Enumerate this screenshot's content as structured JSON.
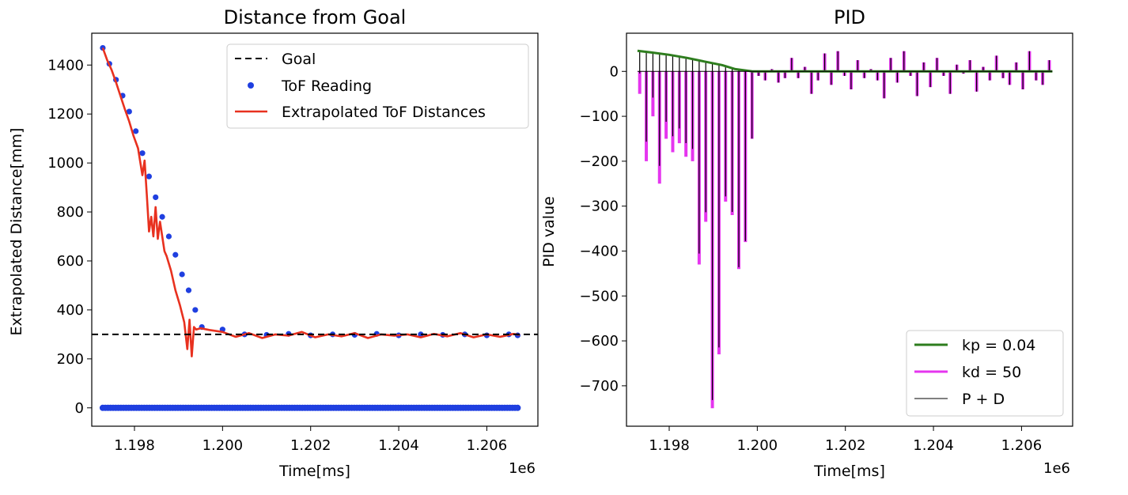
{
  "chart_data": [
    {
      "type": "line",
      "title": "Distance from Goal",
      "xlabel": "Time[ms]",
      "ylabel": "Extrapolated Distance[mm]",
      "x_offset_label": "1e6",
      "xlim": [
        1.19703,
        1.20716
      ],
      "ylim": [
        -75,
        1530
      ],
      "x_ticks": [
        1.198,
        1.2,
        1.202,
        1.204,
        1.206
      ],
      "x_tick_labels": [
        "1.198",
        "1.200",
        "1.202",
        "1.204",
        "1.206"
      ],
      "y_ticks": [
        0,
        200,
        400,
        600,
        800,
        1000,
        1200,
        1400
      ],
      "y_tick_labels": [
        "0",
        "200",
        "400",
        "600",
        "800",
        "1000",
        "1200",
        "1400"
      ],
      "goal": 300,
      "legend_position": "upper right",
      "series": [
        {
          "name": "Goal",
          "color": "#000000",
          "style": "dashed",
          "y": 300
        },
        {
          "name": "ToF Reading",
          "color": "#1f3fe0",
          "style": "scatter",
          "x": [
            1.19728,
            1.19743,
            1.19758,
            1.19773,
            1.19788,
            1.19803,
            1.19818,
            1.19833,
            1.19848,
            1.19863,
            1.19878,
            1.19893,
            1.19908,
            1.19923,
            1.19938,
            1.19953,
            1.2,
            1.2005,
            1.201,
            1.2015,
            1.202,
            1.2025,
            1.203,
            1.2035,
            1.204,
            1.2045,
            1.205,
            1.2055,
            1.206,
            1.2065,
            1.2067
          ],
          "y": [
            1470,
            1405,
            1340,
            1275,
            1210,
            1130,
            1040,
            945,
            860,
            780,
            700,
            625,
            545,
            480,
            400,
            330,
            320,
            300,
            298,
            302,
            296,
            300,
            298,
            302,
            296,
            300,
            298,
            300,
            296,
            300,
            296
          ],
          "zero_band": {
            "y": 0,
            "x_start": 1.19728,
            "x_end": 1.2067
          }
        },
        {
          "name": "Extrapolated ToF Distances",
          "color": "#e8311f",
          "style": "line",
          "x": [
            1.19728,
            1.19738,
            1.19748,
            1.19758,
            1.19768,
            1.19778,
            1.19788,
            1.19798,
            1.19808,
            1.19818,
            1.19823,
            1.19828,
            1.19833,
            1.19838,
            1.19843,
            1.19848,
            1.19853,
            1.19858,
            1.19863,
            1.19868,
            1.19873,
            1.19883,
            1.19893,
            1.19903,
            1.19913,
            1.1992,
            1.19925,
            1.1993,
            1.19935,
            1.1994,
            1.1995,
            1.1997,
            1.2,
            1.2003,
            1.2006,
            1.2009,
            1.2012,
            1.2015,
            1.2018,
            1.2021,
            1.2024,
            1.2027,
            1.203,
            1.2033,
            1.2036,
            1.2039,
            1.2042,
            1.2045,
            1.2048,
            1.2051,
            1.2054,
            1.2057,
            1.206,
            1.2063,
            1.2066,
            1.20675
          ],
          "y": [
            1470,
            1420,
            1380,
            1330,
            1275,
            1220,
            1170,
            1110,
            1060,
            950,
            1010,
            870,
            720,
            780,
            700,
            820,
            690,
            760,
            700,
            640,
            620,
            560,
            480,
            420,
            350,
            240,
            360,
            210,
            330,
            320,
            325,
            318,
            310,
            290,
            305,
            285,
            300,
            295,
            310,
            288,
            300,
            292,
            305,
            285,
            300,
            295,
            300,
            288,
            302,
            292,
            305,
            288,
            300,
            290,
            302,
            298
          ]
        }
      ]
    },
    {
      "type": "line",
      "title": "PID",
      "xlabel": "Time[ms]",
      "ylabel": "PID value",
      "x_offset_label": "1e6",
      "xlim": [
        1.19703,
        1.20716
      ],
      "ylim": [
        -790,
        85
      ],
      "x_ticks": [
        1.198,
        1.2,
        1.202,
        1.204,
        1.206
      ],
      "x_tick_labels": [
        "1.198",
        "1.200",
        "1.202",
        "1.204",
        "1.206"
      ],
      "y_ticks": [
        0,
        -100,
        -200,
        -300,
        -400,
        -500,
        -600,
        -700
      ],
      "y_tick_labels": [
        "0",
        "−100",
        "−200",
        "−300",
        "−400",
        "−500",
        "−600",
        "−700"
      ],
      "legend_position": "lower right",
      "series": [
        {
          "name": "kp = 0.04",
          "color": "#2e7d1e",
          "style": "line",
          "x": [
            1.19728,
            1.1976,
            1.198,
            1.1984,
            1.1988,
            1.1992,
            1.1995,
            1.1999,
            1.2067
          ],
          "y": [
            46,
            42,
            37,
            30,
            22,
            14,
            5,
            0,
            0
          ]
        },
        {
          "name": "kd = 50",
          "color": "#e535ef",
          "style": "impulses",
          "x": [
            1.19733,
            1.19748,
            1.19763,
            1.19778,
            1.19793,
            1.19808,
            1.19823,
            1.19838,
            1.19853,
            1.19868,
            1.19883,
            1.19898,
            1.19913,
            1.19928,
            1.19943,
            1.19958,
            1.19973,
            1.19988,
            1.20003,
            1.20018,
            1.20033,
            1.20048,
            1.20063,
            1.20078,
            1.20093,
            1.20108,
            1.20123,
            1.20138,
            1.20153,
            1.20168,
            1.20183,
            1.20198,
            1.20213,
            1.20228,
            1.20243,
            1.20258,
            1.20273,
            1.20288,
            1.20303,
            1.20318,
            1.20333,
            1.20348,
            1.20363,
            1.20378,
            1.20393,
            1.20408,
            1.20423,
            1.20438,
            1.20453,
            1.20468,
            1.20483,
            1.20498,
            1.20513,
            1.20528,
            1.20543,
            1.20558,
            1.20573,
            1.20588,
            1.20603,
            1.20618,
            1.20633,
            1.20648,
            1.20663
          ],
          "y": [
            -50,
            -200,
            -100,
            -250,
            -150,
            -180,
            -160,
            -190,
            -200,
            -430,
            -335,
            -750,
            -630,
            -290,
            -320,
            -440,
            -380,
            -150,
            -10,
            -20,
            5,
            -25,
            -15,
            30,
            -15,
            10,
            -50,
            -20,
            40,
            -30,
            45,
            -10,
            -40,
            25,
            -15,
            5,
            -20,
            -60,
            30,
            -25,
            45,
            -10,
            -55,
            20,
            -35,
            30,
            -10,
            -50,
            15,
            -5,
            25,
            -45,
            10,
            -20,
            35,
            -15,
            -30,
            20,
            -40,
            45,
            -20,
            -30,
            25
          ]
        },
        {
          "name": "P + D",
          "color": "#000000",
          "style": "impulses"
        }
      ]
    }
  ]
}
